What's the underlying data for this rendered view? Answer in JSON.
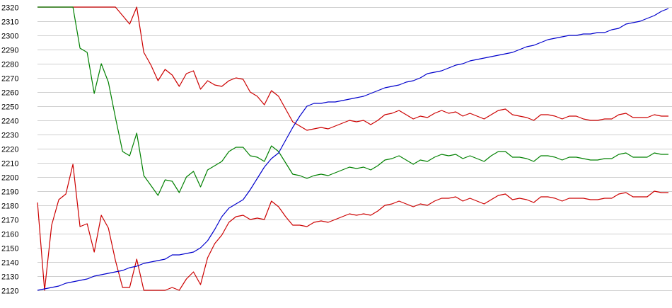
{
  "chart_data": {
    "type": "line",
    "title": "",
    "xlabel": "",
    "ylabel": "",
    "ylim": [
      2120,
      2320
    ],
    "yticks": [
      2120,
      2130,
      2140,
      2150,
      2160,
      2170,
      2180,
      2190,
      2200,
      2210,
      2220,
      2230,
      2240,
      2250,
      2260,
      2270,
      2280,
      2290,
      2300,
      2310,
      2320
    ],
    "grid": true,
    "legend": "none",
    "x": [
      0,
      1,
      2,
      3,
      4,
      5,
      6,
      7,
      8,
      9,
      10,
      11,
      12,
      13,
      14,
      15,
      16,
      17,
      18,
      19,
      20,
      21,
      22,
      23,
      24,
      25,
      26,
      27,
      28,
      29,
      30,
      31,
      32,
      33,
      34,
      35,
      36,
      37,
      38,
      39,
      40,
      41,
      42,
      43,
      44,
      45,
      46,
      47,
      48,
      49,
      50,
      51,
      52,
      53,
      54,
      55,
      56,
      57,
      58,
      59,
      60,
      61,
      62,
      63,
      64,
      65,
      66,
      67,
      68,
      69,
      70,
      71,
      72,
      73,
      74,
      75,
      76,
      77,
      78,
      79,
      80,
      81,
      82,
      83,
      84,
      85,
      86,
      87,
      88,
      89
    ],
    "series": [
      {
        "color": "#cc0000",
        "values": [
          2320,
          2320,
          2320,
          2320,
          2320,
          2320,
          2320,
          2320,
          2320,
          2320,
          2320,
          2320,
          2314,
          2308,
          2320,
          2288,
          2279,
          2268,
          2276,
          2272,
          2264,
          2273,
          2275,
          2262,
          2268,
          2265,
          2264,
          2268,
          2270,
          2269,
          2260,
          2257,
          2251,
          2261,
          2257,
          2248,
          2239,
          2236,
          2233,
          2234,
          2235,
          2234,
          2236,
          2238,
          2240,
          2239,
          2240,
          2237,
          2240,
          2244,
          2245,
          2247,
          2244,
          2241,
          2243,
          2242,
          2245,
          2247,
          2245,
          2246,
          2243,
          2245,
          2243,
          2241,
          2244,
          2247,
          2248,
          2244,
          2243,
          2242,
          2240,
          2244,
          2244,
          2243,
          2241,
          2243,
          2243,
          2241,
          2240,
          2240,
          2241,
          2241,
          2244,
          2245,
          2242,
          2242,
          2242,
          2244,
          2243,
          2243
        ]
      },
      {
        "color": "#008000",
        "values": [
          2320,
          2320,
          2320,
          2320,
          2320,
          2320,
          2291,
          2288,
          2259,
          2280,
          2267,
          2242,
          2218,
          2215,
          2231,
          2201,
          2194,
          2187,
          2198,
          2197,
          2189,
          2200,
          2204,
          2193,
          2205,
          2208,
          2211,
          2218,
          2221,
          2221,
          2215,
          2214,
          2211,
          2222,
          2218,
          2210,
          2202,
          2201,
          2199,
          2201,
          2202,
          2201,
          2203,
          2205,
          2207,
          2206,
          2207,
          2205,
          2208,
          2212,
          2213,
          2215,
          2212,
          2209,
          2212,
          2211,
          2214,
          2216,
          2215,
          2216,
          2213,
          2215,
          2213,
          2211,
          2215,
          2218,
          2218,
          2214,
          2214,
          2213,
          2211,
          2215,
          2215,
          2214,
          2212,
          2214,
          2214,
          2213,
          2212,
          2212,
          2213,
          2213,
          2216,
          2217,
          2214,
          2214,
          2214,
          2217,
          2216,
          2216
        ]
      },
      {
        "color": "#cc0000",
        "values": [
          2182,
          2120,
          2166,
          2184,
          2188,
          2209,
          2165,
          2167,
          2147,
          2173,
          2164,
          2141,
          2122,
          2122,
          2142,
          2120,
          2120,
          2120,
          2120,
          2122,
          2120,
          2128,
          2133,
          2124,
          2143,
          2153,
          2159,
          2168,
          2172,
          2173,
          2170,
          2171,
          2170,
          2183,
          2179,
          2172,
          2166,
          2166,
          2165,
          2168,
          2169,
          2168,
          2170,
          2172,
          2174,
          2173,
          2174,
          2173,
          2176,
          2180,
          2181,
          2183,
          2181,
          2179,
          2181,
          2180,
          2183,
          2185,
          2185,
          2186,
          2183,
          2185,
          2183,
          2181,
          2184,
          2187,
          2188,
          2184,
          2185,
          2184,
          2182,
          2186,
          2186,
          2185,
          2183,
          2185,
          2185,
          2185,
          2184,
          2184,
          2185,
          2185,
          2188,
          2189,
          2186,
          2186,
          2186,
          2190,
          2189,
          2189
        ]
      },
      {
        "color": "#0000cc",
        "values": [
          2120,
          2121,
          2122,
          2123,
          2125,
          2126,
          2127,
          2128,
          2130,
          2131,
          2132,
          2133,
          2134,
          2136,
          2137,
          2139,
          2140,
          2141,
          2142,
          2145,
          2145,
          2146,
          2147,
          2150,
          2155,
          2163,
          2172,
          2178,
          2181,
          2184,
          2191,
          2199,
          2207,
          2213,
          2217,
          2226,
          2235,
          2243,
          2250,
          2252,
          2252,
          2253,
          2253,
          2254,
          2255,
          2256,
          2257,
          2259,
          2261,
          2263,
          2264,
          2265,
          2267,
          2268,
          2270,
          2273,
          2274,
          2275,
          2277,
          2279,
          2280,
          2282,
          2283,
          2284,
          2285,
          2286,
          2287,
          2288,
          2290,
          2292,
          2293,
          2295,
          2297,
          2298,
          2299,
          2300,
          2300,
          2301,
          2301,
          2302,
          2302,
          2304,
          2305,
          2308,
          2309,
          2310,
          2312,
          2314,
          2317,
          2319
        ]
      }
    ]
  }
}
